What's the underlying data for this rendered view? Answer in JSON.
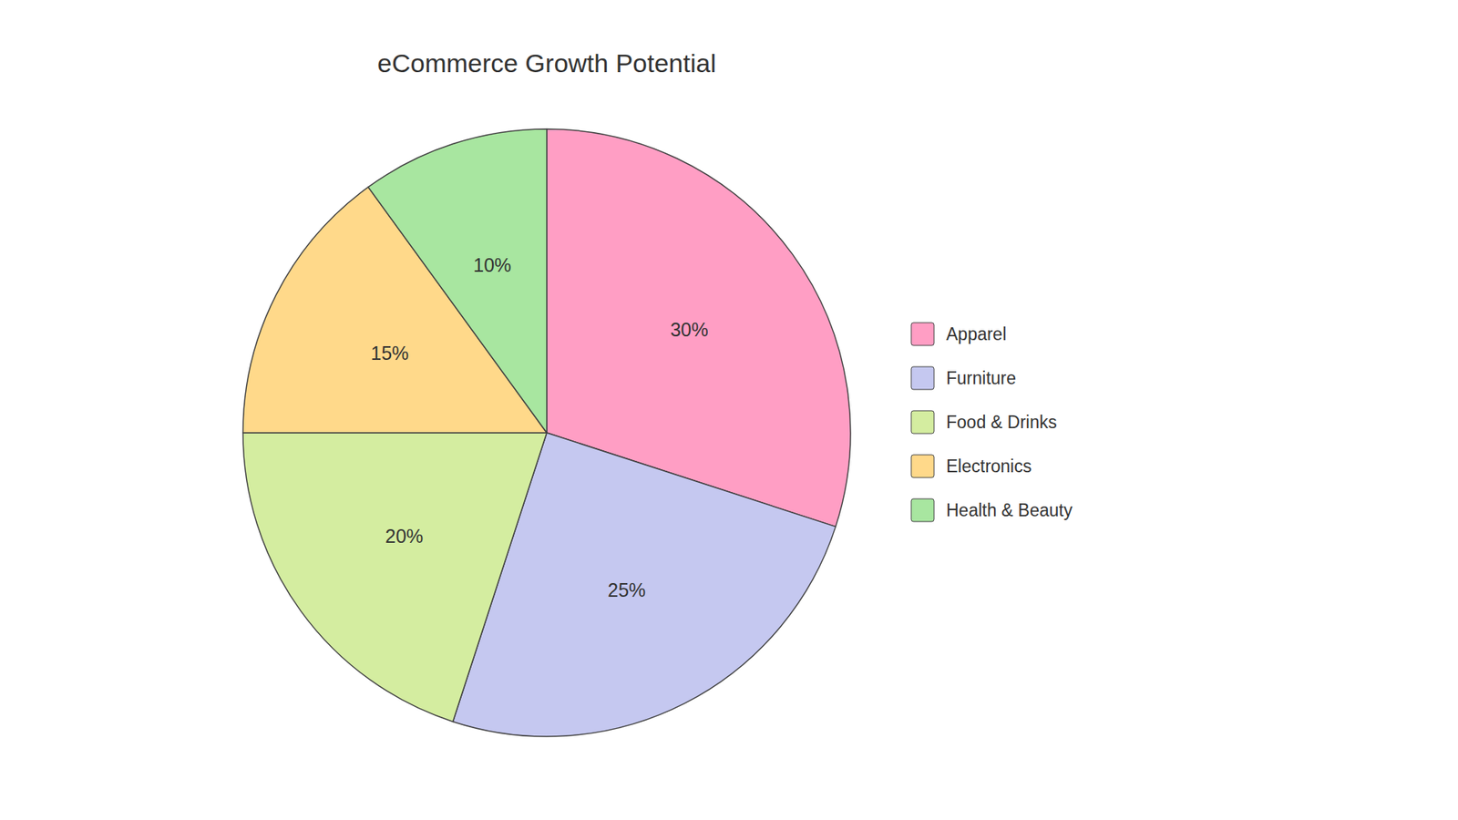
{
  "chart_data": {
    "type": "pie",
    "title": "eCommerce Growth Potential",
    "categories": [
      "Apparel",
      "Furniture",
      "Food & Drinks",
      "Electronics",
      "Health & Beauty"
    ],
    "values": [
      30,
      25,
      20,
      15,
      10
    ],
    "value_labels": [
      "30%",
      "25%",
      "20%",
      "15%",
      "10%"
    ],
    "colors": [
      "#FF9EC4",
      "#C5C8F0",
      "#D4EDA0",
      "#FFD98A",
      "#A8E6A0"
    ],
    "data_labels": true,
    "legend": "right"
  }
}
